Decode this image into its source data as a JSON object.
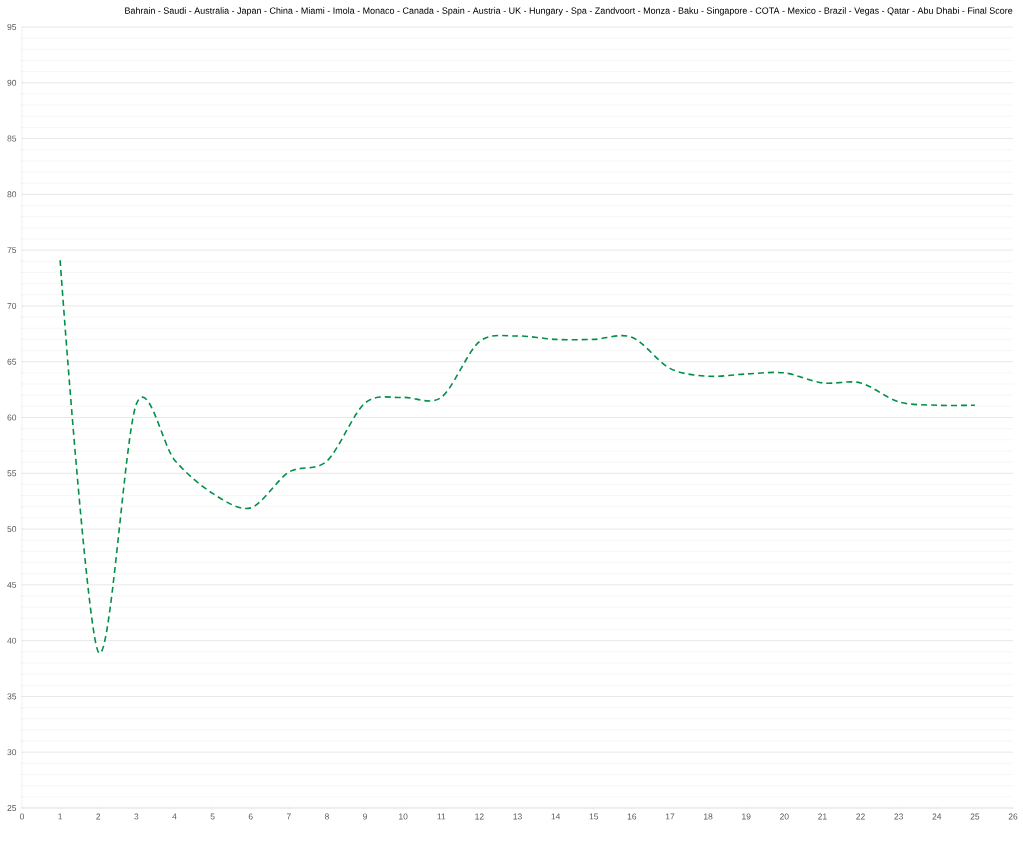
{
  "chart_data": {
    "type": "line",
    "title": "Bahrain - Saudi - Australia -  Japan  -  China  -  Miami  -  Imola  - Monaco - Canada - Spain -   Austria    -  UK  -  Hungary  - Spa - Zandvoort - Monza - Baku - Singapore - COTA - Mexico - Brazil -  Vegas  - Qatar - Abu Dhabi - Final Score",
    "x": [
      1,
      2,
      3,
      4,
      5,
      6,
      7,
      8,
      9,
      10,
      11,
      12,
      13,
      14,
      15,
      16,
      17,
      18,
      19,
      20,
      21,
      22,
      23,
      24,
      25
    ],
    "series": [
      {
        "color": "#00904a",
        "values": [
          74.1,
          39.0,
          61.2,
          56.2,
          53.2,
          51.9,
          55.1,
          56.1,
          61.3,
          61.8,
          61.8,
          66.8,
          67.3,
          67.0,
          67.0,
          67.2,
          64.4,
          63.7,
          63.9,
          64.0,
          63.1,
          63.1,
          61.4,
          61.1,
          61.1
        ]
      }
    ],
    "xlim": [
      0,
      26
    ],
    "xticks": [
      0,
      1,
      2,
      3,
      4,
      5,
      6,
      7,
      8,
      9,
      10,
      11,
      12,
      13,
      14,
      15,
      16,
      17,
      18,
      19,
      20,
      21,
      22,
      23,
      24,
      25,
      26
    ],
    "ylim": [
      25,
      95
    ],
    "yticks": [
      25,
      30,
      35,
      40,
      45,
      50,
      55,
      60,
      65,
      70,
      75,
      80,
      85,
      90,
      95
    ],
    "grid": "y",
    "marker": "none",
    "line_style": "dashed"
  }
}
